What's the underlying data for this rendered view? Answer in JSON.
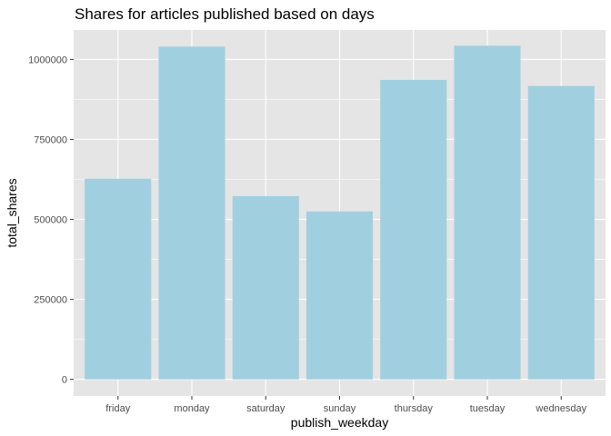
{
  "chart_data": {
    "type": "bar",
    "title": "Shares for articles published based on days",
    "xlabel": "publish_weekday",
    "ylabel": "total_shares",
    "categories": [
      "friday",
      "monday",
      "saturday",
      "sunday",
      "thursday",
      "tuesday",
      "wednesday"
    ],
    "values": [
      627000,
      1040000,
      573000,
      525000,
      936000,
      1043000,
      917000
    ],
    "ylim": [
      -52000,
      1092000
    ],
    "yticks": [
      0,
      250000,
      500000,
      750000,
      1000000
    ],
    "ytick_labels": [
      "0",
      "250000",
      "500000",
      "750000",
      "1000000"
    ],
    "grid": true,
    "legend": "none",
    "colors": {
      "bar": "#a0d0e0",
      "panel": "#e5e5e5",
      "grid_major": "#ffffff",
      "text": "#000000",
      "tick_text": "#4d4d4d",
      "tick_mark": "#333333"
    }
  }
}
